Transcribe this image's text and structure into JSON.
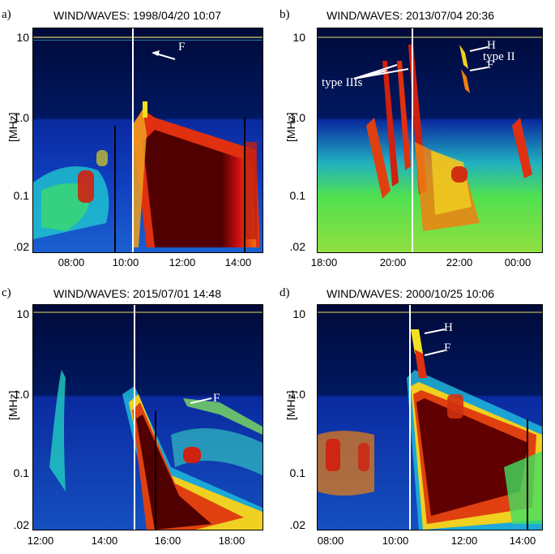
{
  "panels": [
    {
      "label": "a)",
      "title": "WIND/WAVES: 1998/04/20 10:07",
      "yticks": [
        "10",
        "1.0",
        "0.1",
        ".02"
      ],
      "ylabel": "[MHz]",
      "xticks": [
        "08:00",
        "10:00",
        "12:00",
        "14:00"
      ],
      "annotations": [
        "F"
      ]
    },
    {
      "label": "b)",
      "title": "WIND/WAVES: 2013/07/04 20:36",
      "yticks": [
        "10",
        "1.0",
        "0.1",
        ".02"
      ],
      "ylabel": "[MHz]",
      "xticks": [
        "18:00",
        "20:00",
        "22:00",
        "00:00"
      ],
      "annotations": [
        "H",
        "F",
        "type IIIs",
        "type II"
      ]
    },
    {
      "label": "c)",
      "title": "WIND/WAVES: 2015/07/01 14:48",
      "yticks": [
        "10",
        "1.0",
        "0.1",
        ".02"
      ],
      "ylabel": "[MHz]",
      "xticks": [
        "12:00",
        "14:00",
        "16:00",
        "18:00"
      ],
      "annotations": [
        "F"
      ]
    },
    {
      "label": "d)",
      "title": "WIND/WAVES: 2000/10/25 10:06",
      "yticks": [
        "10",
        "1.0",
        "0.1",
        ".02"
      ],
      "ylabel": "[MHz]",
      "xticks": [
        "08:00",
        "10:00",
        "12:00",
        "14:00"
      ],
      "annotations": [
        "H",
        "F"
      ]
    }
  ],
  "colors": {
    "background_low": "#0a1a9a",
    "background_dark": "#000a4a",
    "cyan": "#20d0e0",
    "green": "#40e060",
    "yellow": "#f0e020",
    "orange": "#f08010",
    "red": "#d01010",
    "darkred": "#400000",
    "marker_line": "#ffffff"
  }
}
